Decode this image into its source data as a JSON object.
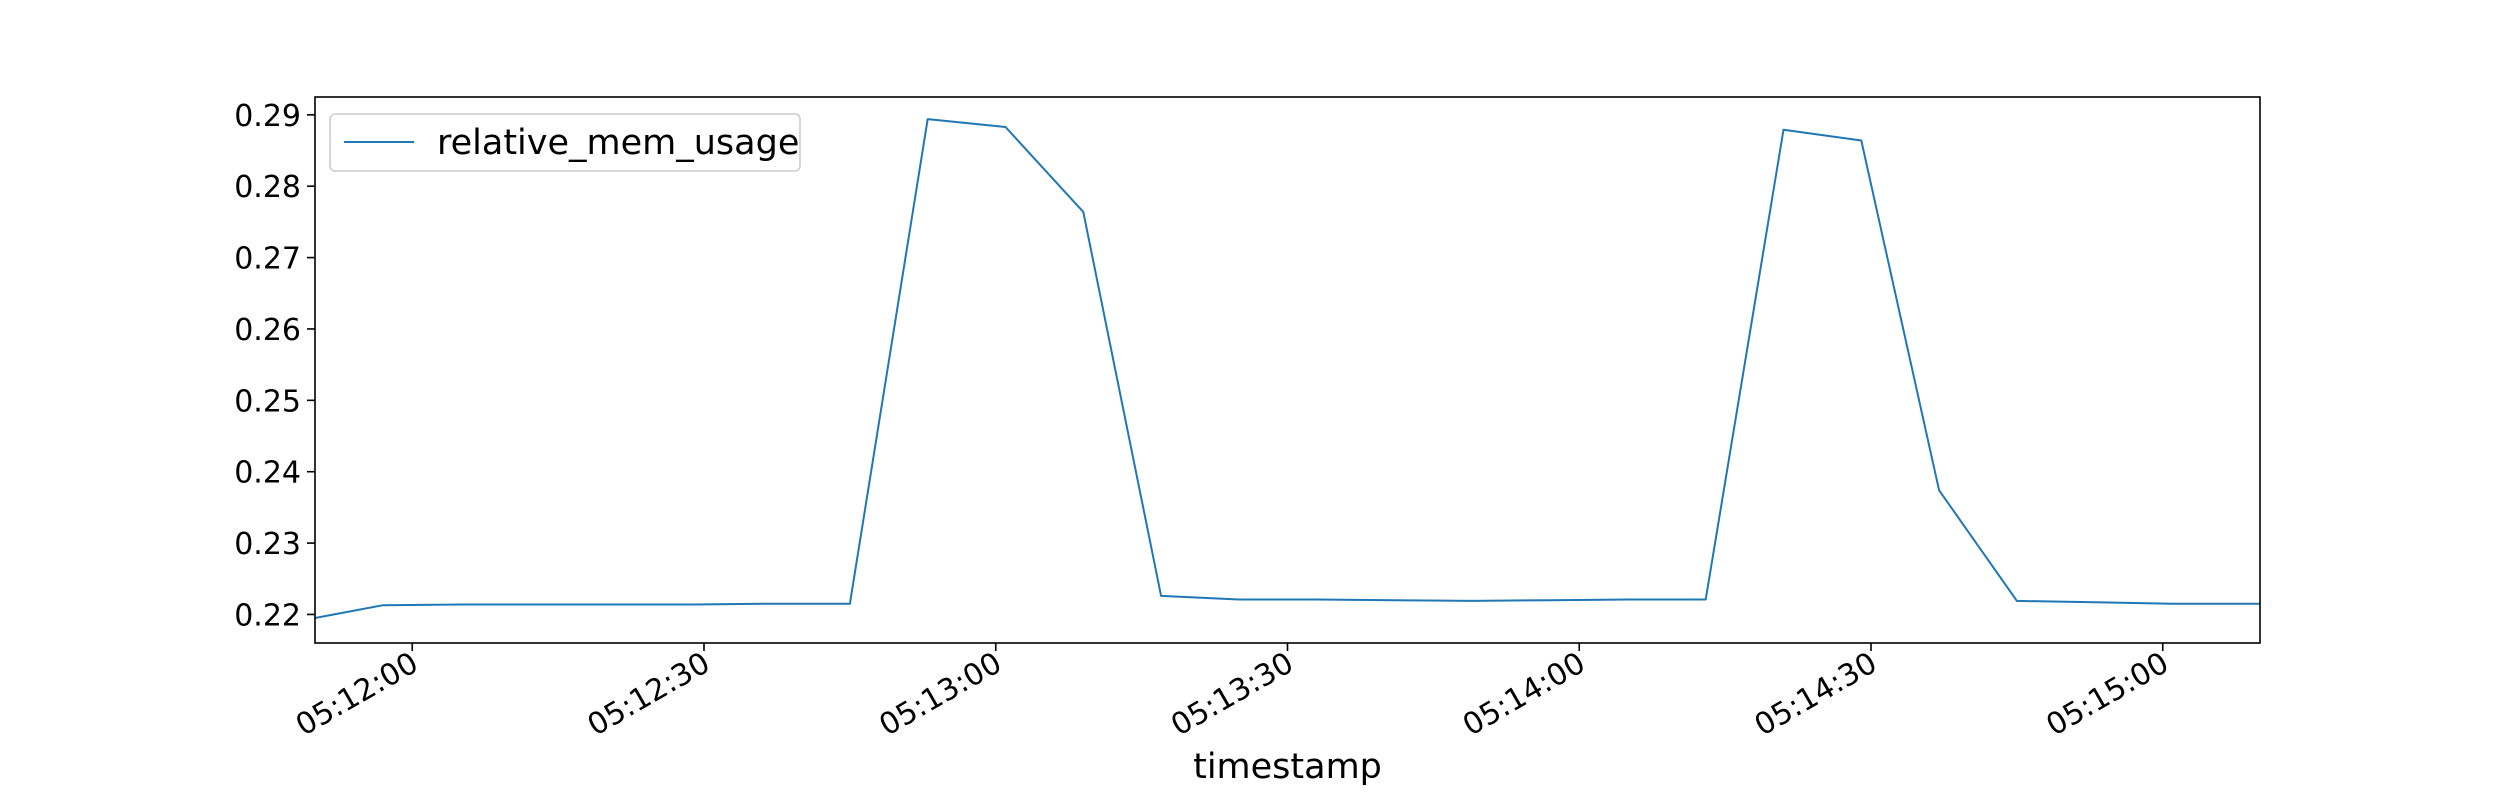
{
  "chart_data": {
    "type": "line",
    "title": "",
    "xlabel": "timestamp",
    "ylabel": "",
    "x_start": "05:11:50",
    "x_end": "05:15:10",
    "xlim": [
      "05:11:50",
      "05:15:10"
    ],
    "ylim": [
      0.216,
      0.2925
    ],
    "x_ticks": [
      "05:12:00",
      "05:12:30",
      "05:13:00",
      "05:13:30",
      "05:14:00",
      "05:14:30",
      "05:15:00"
    ],
    "y_ticks": [
      0.22,
      0.23,
      0.24,
      0.25,
      0.26,
      0.27,
      0.28,
      0.29
    ],
    "y_tick_labels": [
      "0.22",
      "0.23",
      "0.24",
      "0.25",
      "0.26",
      "0.27",
      "0.28",
      "0.29"
    ],
    "grid": false,
    "legend_position": "top-left",
    "series": [
      {
        "name": "relative_mem_usage",
        "color": "#1f77b4",
        "x": [
          "05:11:50",
          "05:11:57",
          "05:12:05",
          "05:12:13",
          "05:12:21",
          "05:12:29",
          "05:12:37",
          "05:12:45",
          "05:12:53",
          "05:13:01",
          "05:13:09",
          "05:13:17",
          "05:13:25",
          "05:13:33",
          "05:13:41",
          "05:13:49",
          "05:13:57",
          "05:14:05",
          "05:14:13",
          "05:14:21",
          "05:14:29",
          "05:14:37",
          "05:14:45",
          "05:14:53",
          "05:15:01",
          "05:15:10"
        ],
        "values": [
          0.2195,
          0.2213,
          0.2214,
          0.2214,
          0.2214,
          0.2214,
          0.2215,
          0.2215,
          0.2894,
          0.2883,
          0.2764,
          0.2226,
          0.2221,
          0.2221,
          0.222,
          0.2219,
          0.222,
          0.2221,
          0.2221,
          0.2879,
          0.2864,
          0.2374,
          0.2219,
          0.2217,
          0.2215,
          0.2215
        ]
      }
    ]
  }
}
